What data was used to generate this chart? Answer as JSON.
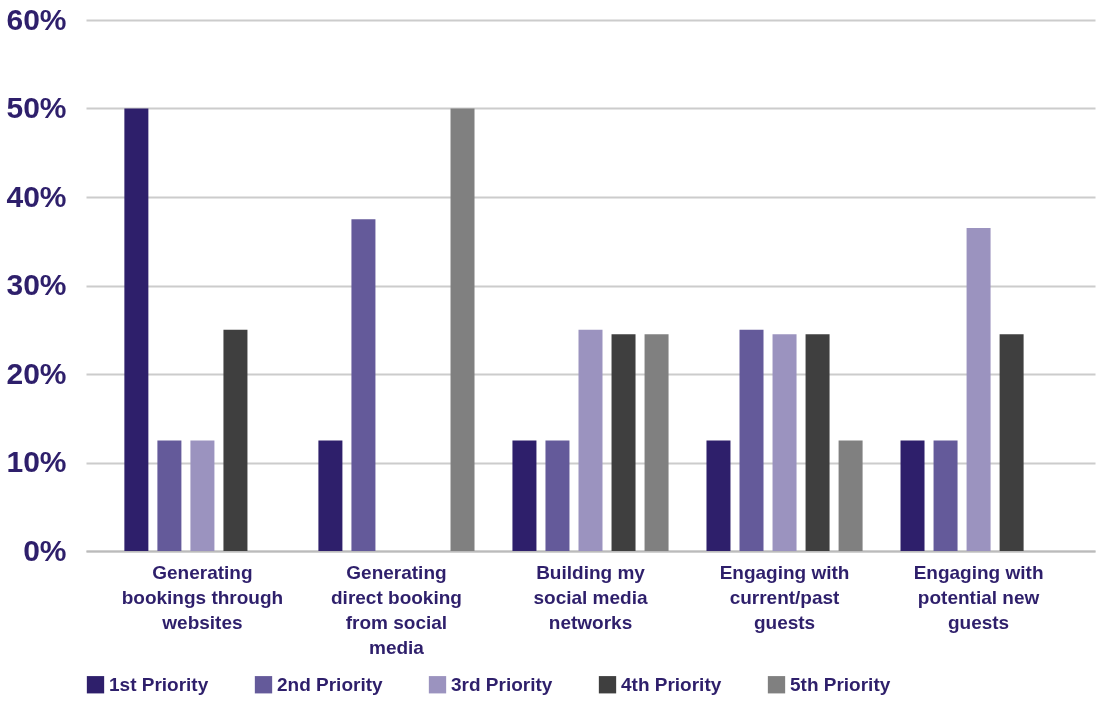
{
  "chart_data": {
    "type": "bar",
    "categories": [
      "Generating bookings through websites",
      "Generating direct booking from social media",
      "Building my social media networks",
      "Engaging with current/past guests",
      "Engaging with potential new guests"
    ],
    "series": [
      {
        "name": "1st Priority",
        "color": "#2e1f6b",
        "values": [
          50,
          12.5,
          12.5,
          12.5,
          12.5
        ]
      },
      {
        "name": "2nd Priority",
        "color": "#645a9a",
        "values": [
          12.5,
          37.5,
          12.5,
          25,
          12.5
        ]
      },
      {
        "name": "3rd Priority",
        "color": "#9b93bf",
        "values": [
          12.5,
          null,
          25,
          24.5,
          36.5
        ]
      },
      {
        "name": "4th Priority",
        "color": "#3f3f3f",
        "values": [
          25,
          null,
          24.5,
          24.5,
          24.5
        ]
      },
      {
        "name": "5th Priority",
        "color": "#808080",
        "values": [
          null,
          50,
          24.5,
          12.5,
          null
        ]
      }
    ],
    "ylim": [
      0,
      60
    ],
    "yticks": [
      {
        "value": 0,
        "label": "0%"
      },
      {
        "value": 10,
        "label": "10%"
      },
      {
        "value": 20,
        "label": "20%"
      },
      {
        "value": 30,
        "label": "30%"
      },
      {
        "value": 40,
        "label": "40%"
      },
      {
        "value": 50,
        "label": "50%"
      },
      {
        "value": 60,
        "label": "60%"
      }
    ],
    "grid": "y",
    "legend": "bottom"
  }
}
